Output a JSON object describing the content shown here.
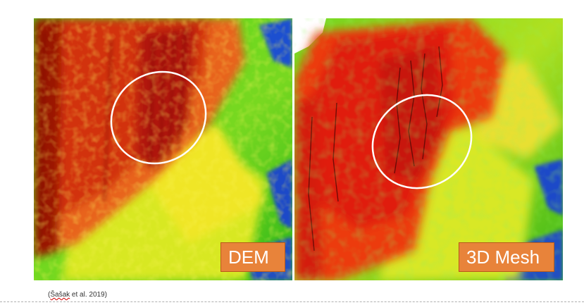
{
  "panels": {
    "dem_label": "DEM",
    "mesh_label": "3D Mesh"
  },
  "citation": {
    "author": "Šašak",
    "rest": " et al. 2019)",
    "open": "("
  },
  "colors": {
    "high": "#c81a0a",
    "mid_high": "#f07a10",
    "mid": "#f0e020",
    "low": "#38d018",
    "very_low": "#1040c0",
    "label_box": "#e8833a",
    "highlight_ellipse": "#ffffff"
  }
}
